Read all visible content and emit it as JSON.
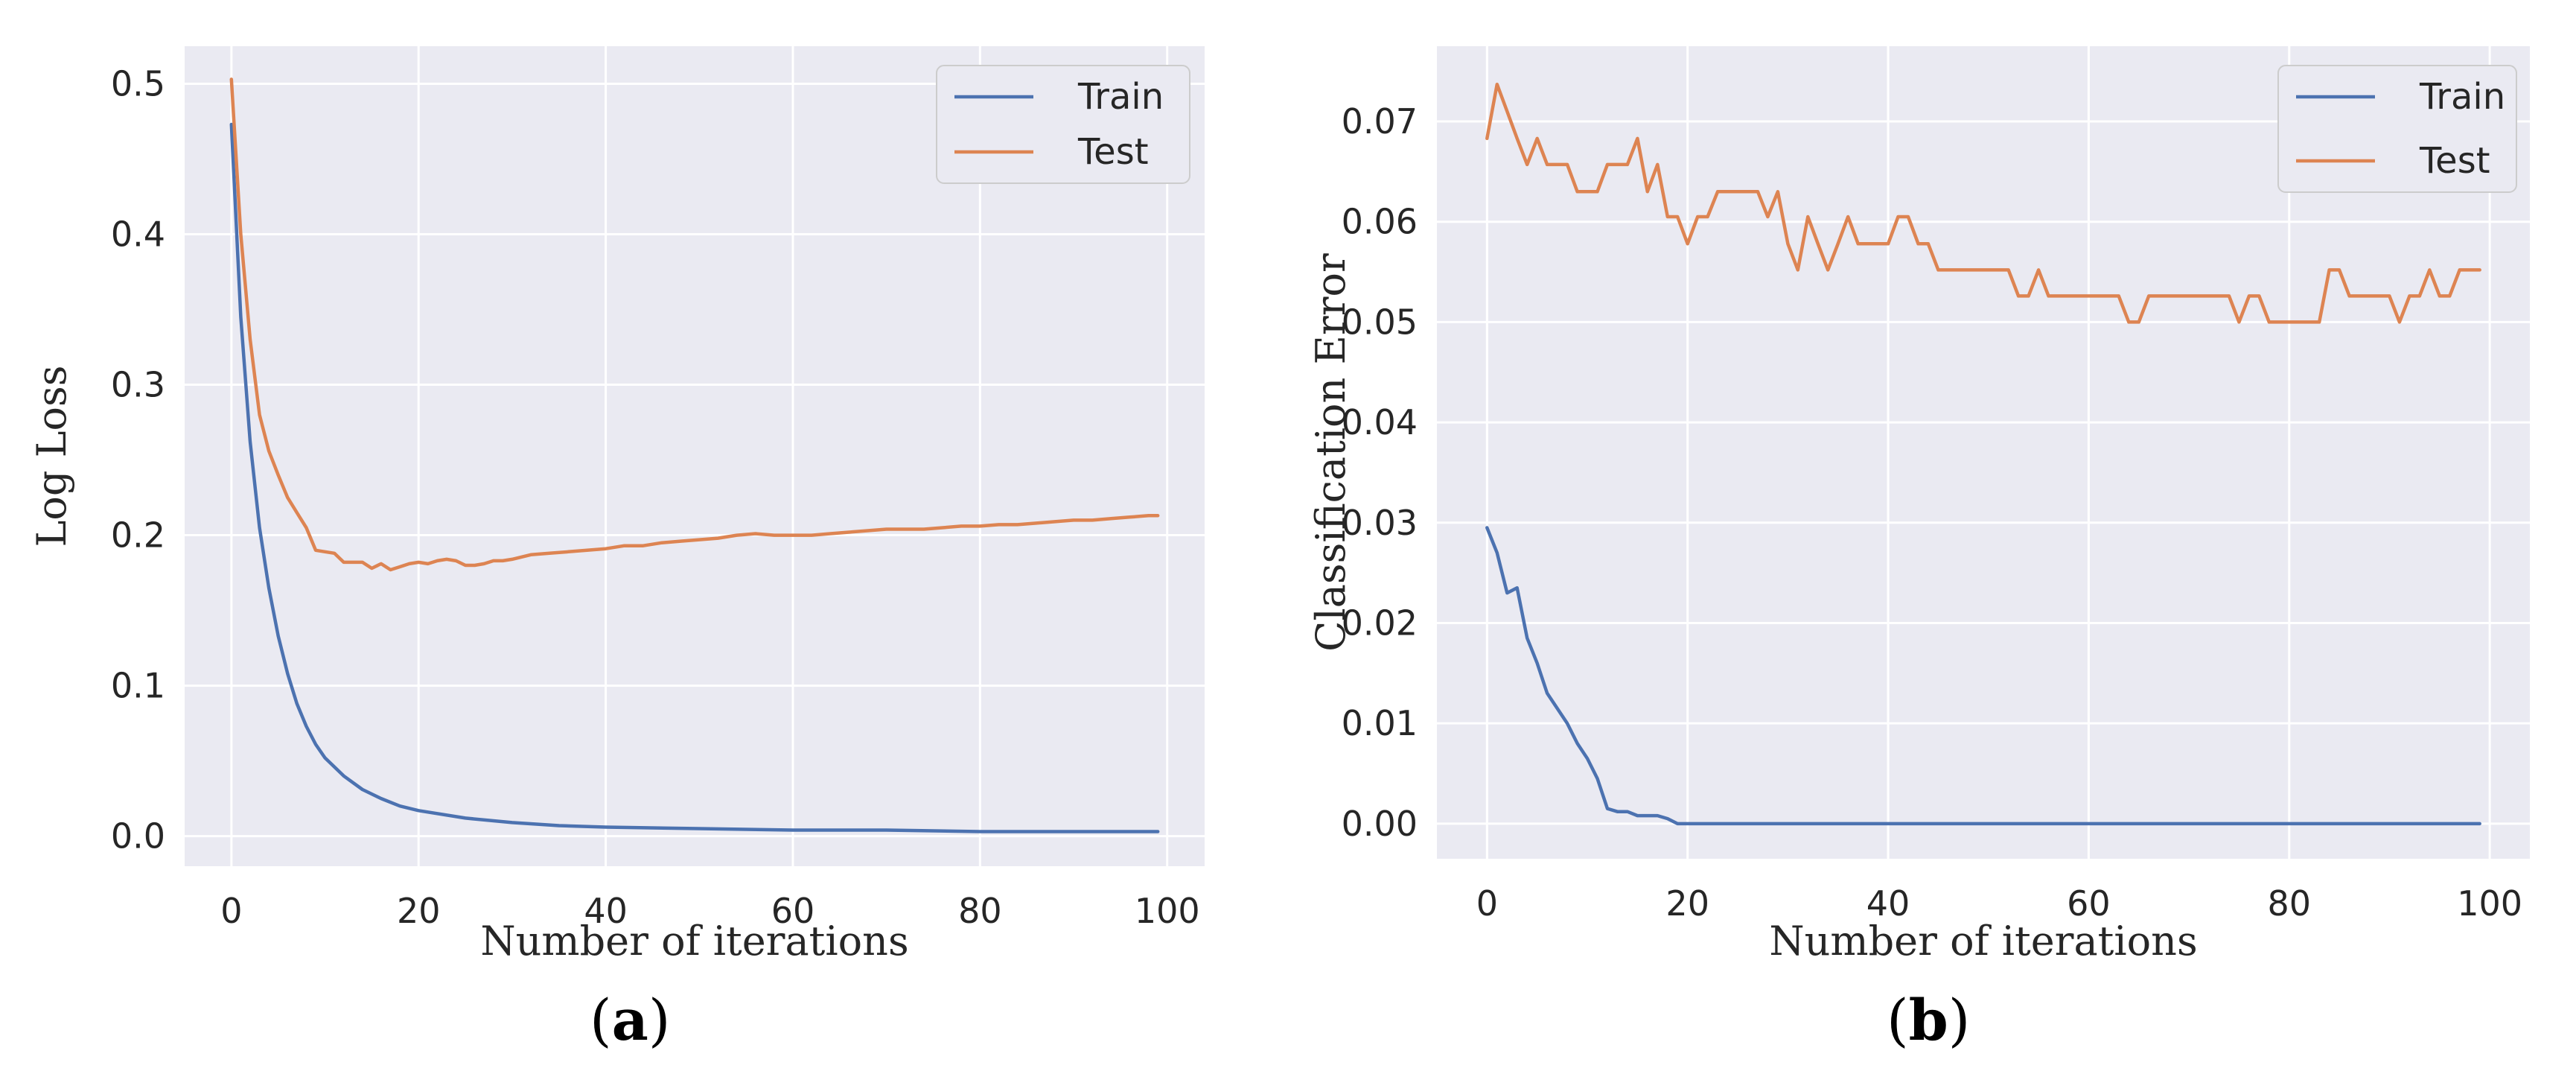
{
  "captions": {
    "a_open": "(",
    "a_letter": "a",
    "a_close": ")",
    "b_open": "(",
    "b_letter": "b",
    "b_close": ")"
  },
  "colors": {
    "train": "#4c72b0",
    "test": "#dd8452",
    "background": "#eaeaf2",
    "grid": "#ffffff"
  },
  "chart_data": [
    {
      "type": "line",
      "panel": "a",
      "xlabel": "Number of iterations",
      "ylabel": "Log Loss",
      "xlim": [
        -5,
        104
      ],
      "ylim": [
        -0.02,
        0.525
      ],
      "xticks": [
        0,
        20,
        40,
        60,
        80,
        100
      ],
      "xtick_labels": [
        "0",
        "20",
        "40",
        "60",
        "80",
        "100"
      ],
      "yticks": [
        0.0,
        0.1,
        0.2,
        0.3,
        0.4,
        0.5
      ],
      "ytick_labels": [
        "0.0",
        "0.1",
        "0.2",
        "0.3",
        "0.4",
        "0.5"
      ],
      "grid": true,
      "legend": "top-right",
      "series": [
        {
          "name": "Train",
          "x": [
            0,
            1,
            2,
            3,
            4,
            5,
            6,
            7,
            8,
            9,
            10,
            12,
            14,
            16,
            18,
            20,
            25,
            30,
            35,
            40,
            50,
            60,
            70,
            80,
            90,
            99
          ],
          "values": [
            0.473,
            0.345,
            0.262,
            0.205,
            0.165,
            0.133,
            0.108,
            0.088,
            0.073,
            0.061,
            0.052,
            0.04,
            0.031,
            0.025,
            0.02,
            0.017,
            0.012,
            0.009,
            0.007,
            0.006,
            0.005,
            0.004,
            0.004,
            0.003,
            0.003,
            0.003
          ]
        },
        {
          "name": "Test",
          "x": [
            0,
            1,
            2,
            3,
            4,
            5,
            6,
            7,
            8,
            9,
            10,
            11,
            12,
            13,
            14,
            15,
            16,
            17,
            18,
            19,
            20,
            21,
            22,
            23,
            24,
            25,
            26,
            27,
            28,
            29,
            30,
            32,
            34,
            36,
            38,
            40,
            42,
            44,
            46,
            48,
            50,
            52,
            54,
            56,
            58,
            60,
            62,
            64,
            66,
            68,
            70,
            72,
            74,
            76,
            78,
            80,
            82,
            84,
            86,
            88,
            90,
            92,
            94,
            96,
            98,
            99
          ],
          "values": [
            0.503,
            0.4,
            0.33,
            0.28,
            0.256,
            0.24,
            0.225,
            0.215,
            0.205,
            0.19,
            0.189,
            0.188,
            0.182,
            0.182,
            0.182,
            0.178,
            0.181,
            0.177,
            0.179,
            0.181,
            0.182,
            0.181,
            0.183,
            0.184,
            0.183,
            0.18,
            0.18,
            0.181,
            0.183,
            0.183,
            0.184,
            0.187,
            0.188,
            0.189,
            0.19,
            0.191,
            0.193,
            0.193,
            0.195,
            0.196,
            0.197,
            0.198,
            0.2,
            0.201,
            0.2,
            0.2,
            0.2,
            0.201,
            0.202,
            0.203,
            0.204,
            0.204,
            0.204,
            0.205,
            0.206,
            0.206,
            0.207,
            0.207,
            0.208,
            0.209,
            0.21,
            0.21,
            0.211,
            0.212,
            0.213,
            0.213
          ]
        }
      ]
    },
    {
      "type": "line",
      "panel": "b",
      "xlabel": "Number of iterations",
      "ylabel": "Classification Error",
      "xlim": [
        -5,
        104
      ],
      "ylim": [
        -0.0035,
        0.0775
      ],
      "xticks": [
        0,
        20,
        40,
        60,
        80,
        100
      ],
      "xtick_labels": [
        "0",
        "20",
        "40",
        "60",
        "80",
        "100"
      ],
      "yticks": [
        0.0,
        0.01,
        0.02,
        0.03,
        0.04,
        0.05,
        0.06,
        0.07
      ],
      "ytick_labels": [
        "0.00",
        "0.01",
        "0.02",
        "0.03",
        "0.04",
        "0.05",
        "0.06",
        "0.07"
      ],
      "grid": true,
      "legend": "top-right",
      "series": [
        {
          "name": "Train",
          "x": [
            0,
            1,
            2,
            3,
            4,
            5,
            6,
            7,
            8,
            9,
            10,
            11,
            12,
            13,
            14,
            15,
            16,
            17,
            18,
            19,
            20,
            40,
            60,
            80,
            99
          ],
          "values": [
            0.0295,
            0.027,
            0.023,
            0.0235,
            0.0185,
            0.016,
            0.013,
            0.0115,
            0.01,
            0.008,
            0.0065,
            0.0045,
            0.0015,
            0.0012,
            0.0012,
            0.0008,
            0.0008,
            0.0008,
            0.0005,
            0.0,
            0.0,
            0.0,
            0.0,
            0.0,
            0.0
          ]
        },
        {
          "name": "Test",
          "x": [
            0,
            1,
            2,
            3,
            4,
            5,
            6,
            7,
            8,
            9,
            10,
            11,
            12,
            13,
            14,
            15,
            16,
            17,
            18,
            19,
            20,
            21,
            22,
            23,
            24,
            25,
            26,
            27,
            28,
            29,
            30,
            31,
            32,
            33,
            34,
            35,
            36,
            37,
            38,
            39,
            40,
            41,
            42,
            43,
            44,
            45,
            46,
            47,
            48,
            49,
            50,
            51,
            52,
            53,
            54,
            55,
            56,
            57,
            58,
            59,
            60,
            61,
            62,
            63,
            64,
            65,
            66,
            67,
            68,
            69,
            70,
            71,
            72,
            73,
            74,
            75,
            76,
            77,
            78,
            79,
            80,
            81,
            82,
            83,
            84,
            85,
            86,
            87,
            88,
            89,
            90,
            91,
            92,
            93,
            94,
            95,
            96,
            97,
            98,
            99
          ],
          "values": [
            0.0683,
            0.0737,
            0.071,
            0.0683,
            0.0657,
            0.0683,
            0.0657,
            0.0657,
            0.0657,
            0.063,
            0.063,
            0.063,
            0.0657,
            0.0657,
            0.0657,
            0.0683,
            0.063,
            0.0657,
            0.0605,
            0.0605,
            0.0578,
            0.0605,
            0.0605,
            0.063,
            0.063,
            0.063,
            0.063,
            0.063,
            0.0605,
            0.063,
            0.0578,
            0.0552,
            0.0605,
            0.0578,
            0.0552,
            0.0578,
            0.0605,
            0.0578,
            0.0578,
            0.0578,
            0.0578,
            0.0605,
            0.0605,
            0.0578,
            0.0578,
            0.0552,
            0.0552,
            0.0552,
            0.0552,
            0.0552,
            0.0552,
            0.0552,
            0.0552,
            0.0526,
            0.0526,
            0.0552,
            0.0526,
            0.0526,
            0.0526,
            0.0526,
            0.0526,
            0.0526,
            0.0526,
            0.0526,
            0.05,
            0.05,
            0.0526,
            0.0526,
            0.0526,
            0.0526,
            0.0526,
            0.0526,
            0.0526,
            0.0526,
            0.0526,
            0.05,
            0.0526,
            0.0526,
            0.05,
            0.05,
            0.05,
            0.05,
            0.05,
            0.05,
            0.0552,
            0.0552,
            0.0526,
            0.0526,
            0.0526,
            0.0526,
            0.0526,
            0.05,
            0.0526,
            0.0526,
            0.0552,
            0.0526,
            0.0526,
            0.0552,
            0.0552,
            0.0552
          ]
        }
      ]
    }
  ]
}
